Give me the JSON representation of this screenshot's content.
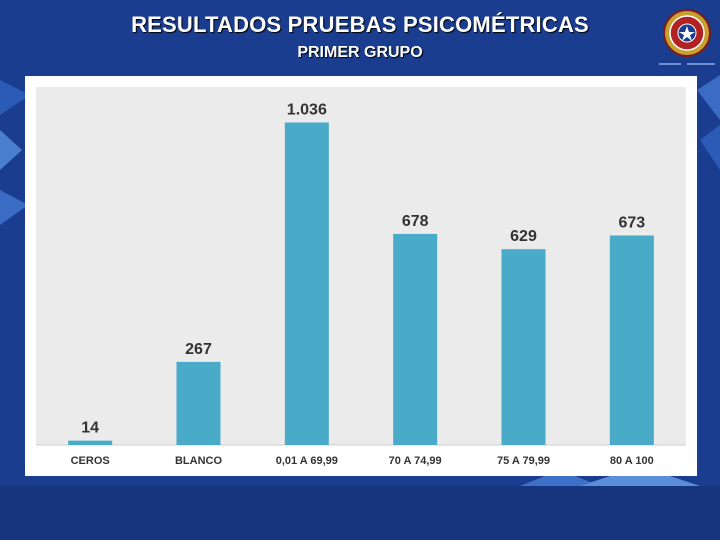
{
  "header": {
    "title": "RESULTADOS PRUEBAS PSICOMÉTRICAS",
    "subtitle": "PRIMER GRUPO"
  },
  "colors": {
    "background": "#1b3d8f",
    "bar": "#4aabc8",
    "plot_area": "#ebebeb",
    "label": "#333333"
  },
  "chart_data": {
    "type": "bar",
    "title": "RESULTADOS PRUEBAS PSICOMÉTRICAS",
    "subtitle": "PRIMER GRUPO",
    "categories": [
      "CEROS",
      "BLANCO",
      "0,01 A 69,99",
      "70 A 74,99",
      "75 A 79,99",
      "80 A 100"
    ],
    "values": [
      14,
      267,
      1036,
      678,
      629,
      673
    ],
    "value_labels": [
      "14",
      "267",
      "1.036",
      "678",
      "629",
      "673"
    ],
    "xlabel": "",
    "ylabel": "",
    "ylim": [
      0,
      1150
    ],
    "grid": false,
    "legend": "none"
  }
}
